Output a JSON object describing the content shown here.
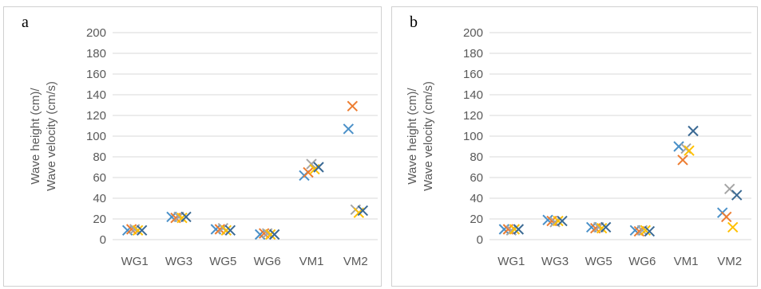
{
  "chart_data": [
    {
      "panel_label": "a",
      "type": "scatter",
      "title": "",
      "xlabel": "",
      "ylabel": "Wave height (cm)/ Wave velocity (cm/s)",
      "ylim": [
        0,
        200
      ],
      "yticks": [
        "0",
        "20",
        "40",
        "60",
        "80",
        "100",
        "120",
        "140",
        "160",
        "180",
        "200"
      ],
      "categories": [
        "WG1",
        "WG3",
        "WG5",
        "WG6",
        "VM1",
        "VM2"
      ],
      "grid": true,
      "legend": "none",
      "marker": "x",
      "series": [
        {
          "color": "#4a90c8",
          "values": [
            9,
            22,
            10,
            5,
            62,
            107
          ]
        },
        {
          "color": "#ed7d31",
          "values": [
            10,
            21,
            10,
            6,
            65,
            129
          ]
        },
        {
          "color": "#a5a5a5",
          "values": [
            10,
            22,
            11,
            6,
            73,
            29
          ]
        },
        {
          "color": "#ffc000",
          "values": [
            9,
            21,
            9,
            5,
            68,
            26
          ]
        },
        {
          "color": "#3b6a94",
          "values": [
            9,
            22,
            9,
            5,
            70,
            28
          ]
        }
      ]
    },
    {
      "panel_label": "b",
      "type": "scatter",
      "title": "",
      "xlabel": "",
      "ylabel": "Wave height (cm)/ Wave velocity (cm/s)",
      "ylim": [
        0,
        200
      ],
      "yticks": [
        "0",
        "20",
        "40",
        "60",
        "80",
        "100",
        "120",
        "140",
        "160",
        "180",
        "200"
      ],
      "categories": [
        "WG1",
        "WG3",
        "WG5",
        "WG6",
        "VM1",
        "VM2"
      ],
      "grid": true,
      "legend": "none",
      "marker": "x",
      "series": [
        {
          "color": "#4a90c8",
          "values": [
            10,
            19,
            12,
            9,
            90,
            26
          ]
        },
        {
          "color": "#ed7d31",
          "values": [
            10,
            18,
            11,
            8,
            77,
            22
          ]
        },
        {
          "color": "#a5a5a5",
          "values": [
            9,
            17,
            12,
            9,
            88,
            49
          ]
        },
        {
          "color": "#ffc000",
          "values": [
            10,
            18,
            11,
            9,
            86,
            12
          ]
        },
        {
          "color": "#3b6a94",
          "values": [
            10,
            18,
            12,
            8,
            105,
            43
          ]
        }
      ]
    }
  ]
}
